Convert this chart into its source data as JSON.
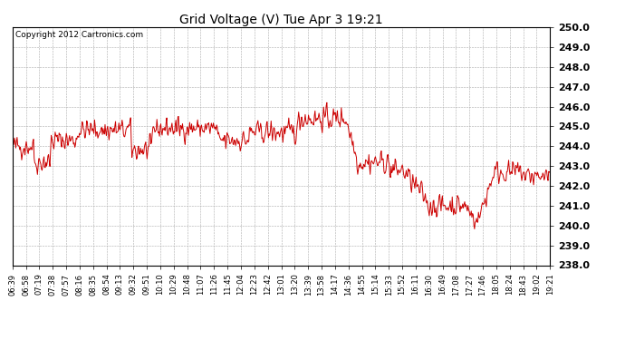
{
  "title": "Grid Voltage (V) Tue Apr 3 19:21",
  "copyright_text": "Copyright 2012 Cartronics.com",
  "line_color": "#cc0000",
  "background_color": "#ffffff",
  "plot_bg_color": "#ffffff",
  "grid_color": "#aaaaaa",
  "ylim": [
    238.0,
    250.0
  ],
  "yticks": [
    238.0,
    239.0,
    240.0,
    241.0,
    242.0,
    243.0,
    244.0,
    245.0,
    246.0,
    247.0,
    248.0,
    249.0,
    250.0
  ],
  "xtick_labels": [
    "06:39",
    "06:58",
    "07:19",
    "07:38",
    "07:57",
    "08:16",
    "08:35",
    "08:54",
    "09:13",
    "09:32",
    "09:51",
    "10:10",
    "10:29",
    "10:48",
    "11:07",
    "11:26",
    "11:45",
    "12:04",
    "12:23",
    "12:42",
    "13:01",
    "13:20",
    "13:39",
    "13:58",
    "14:17",
    "14:36",
    "14:55",
    "15:14",
    "15:33",
    "15:52",
    "16:11",
    "16:30",
    "16:49",
    "17:08",
    "17:27",
    "17:46",
    "18:05",
    "18:24",
    "18:43",
    "19:02",
    "19:21"
  ],
  "line_width": 0.7,
  "title_fontsize": 10,
  "ytick_fontsize": 8,
  "xtick_fontsize": 6,
  "copyright_fontsize": 6.5
}
